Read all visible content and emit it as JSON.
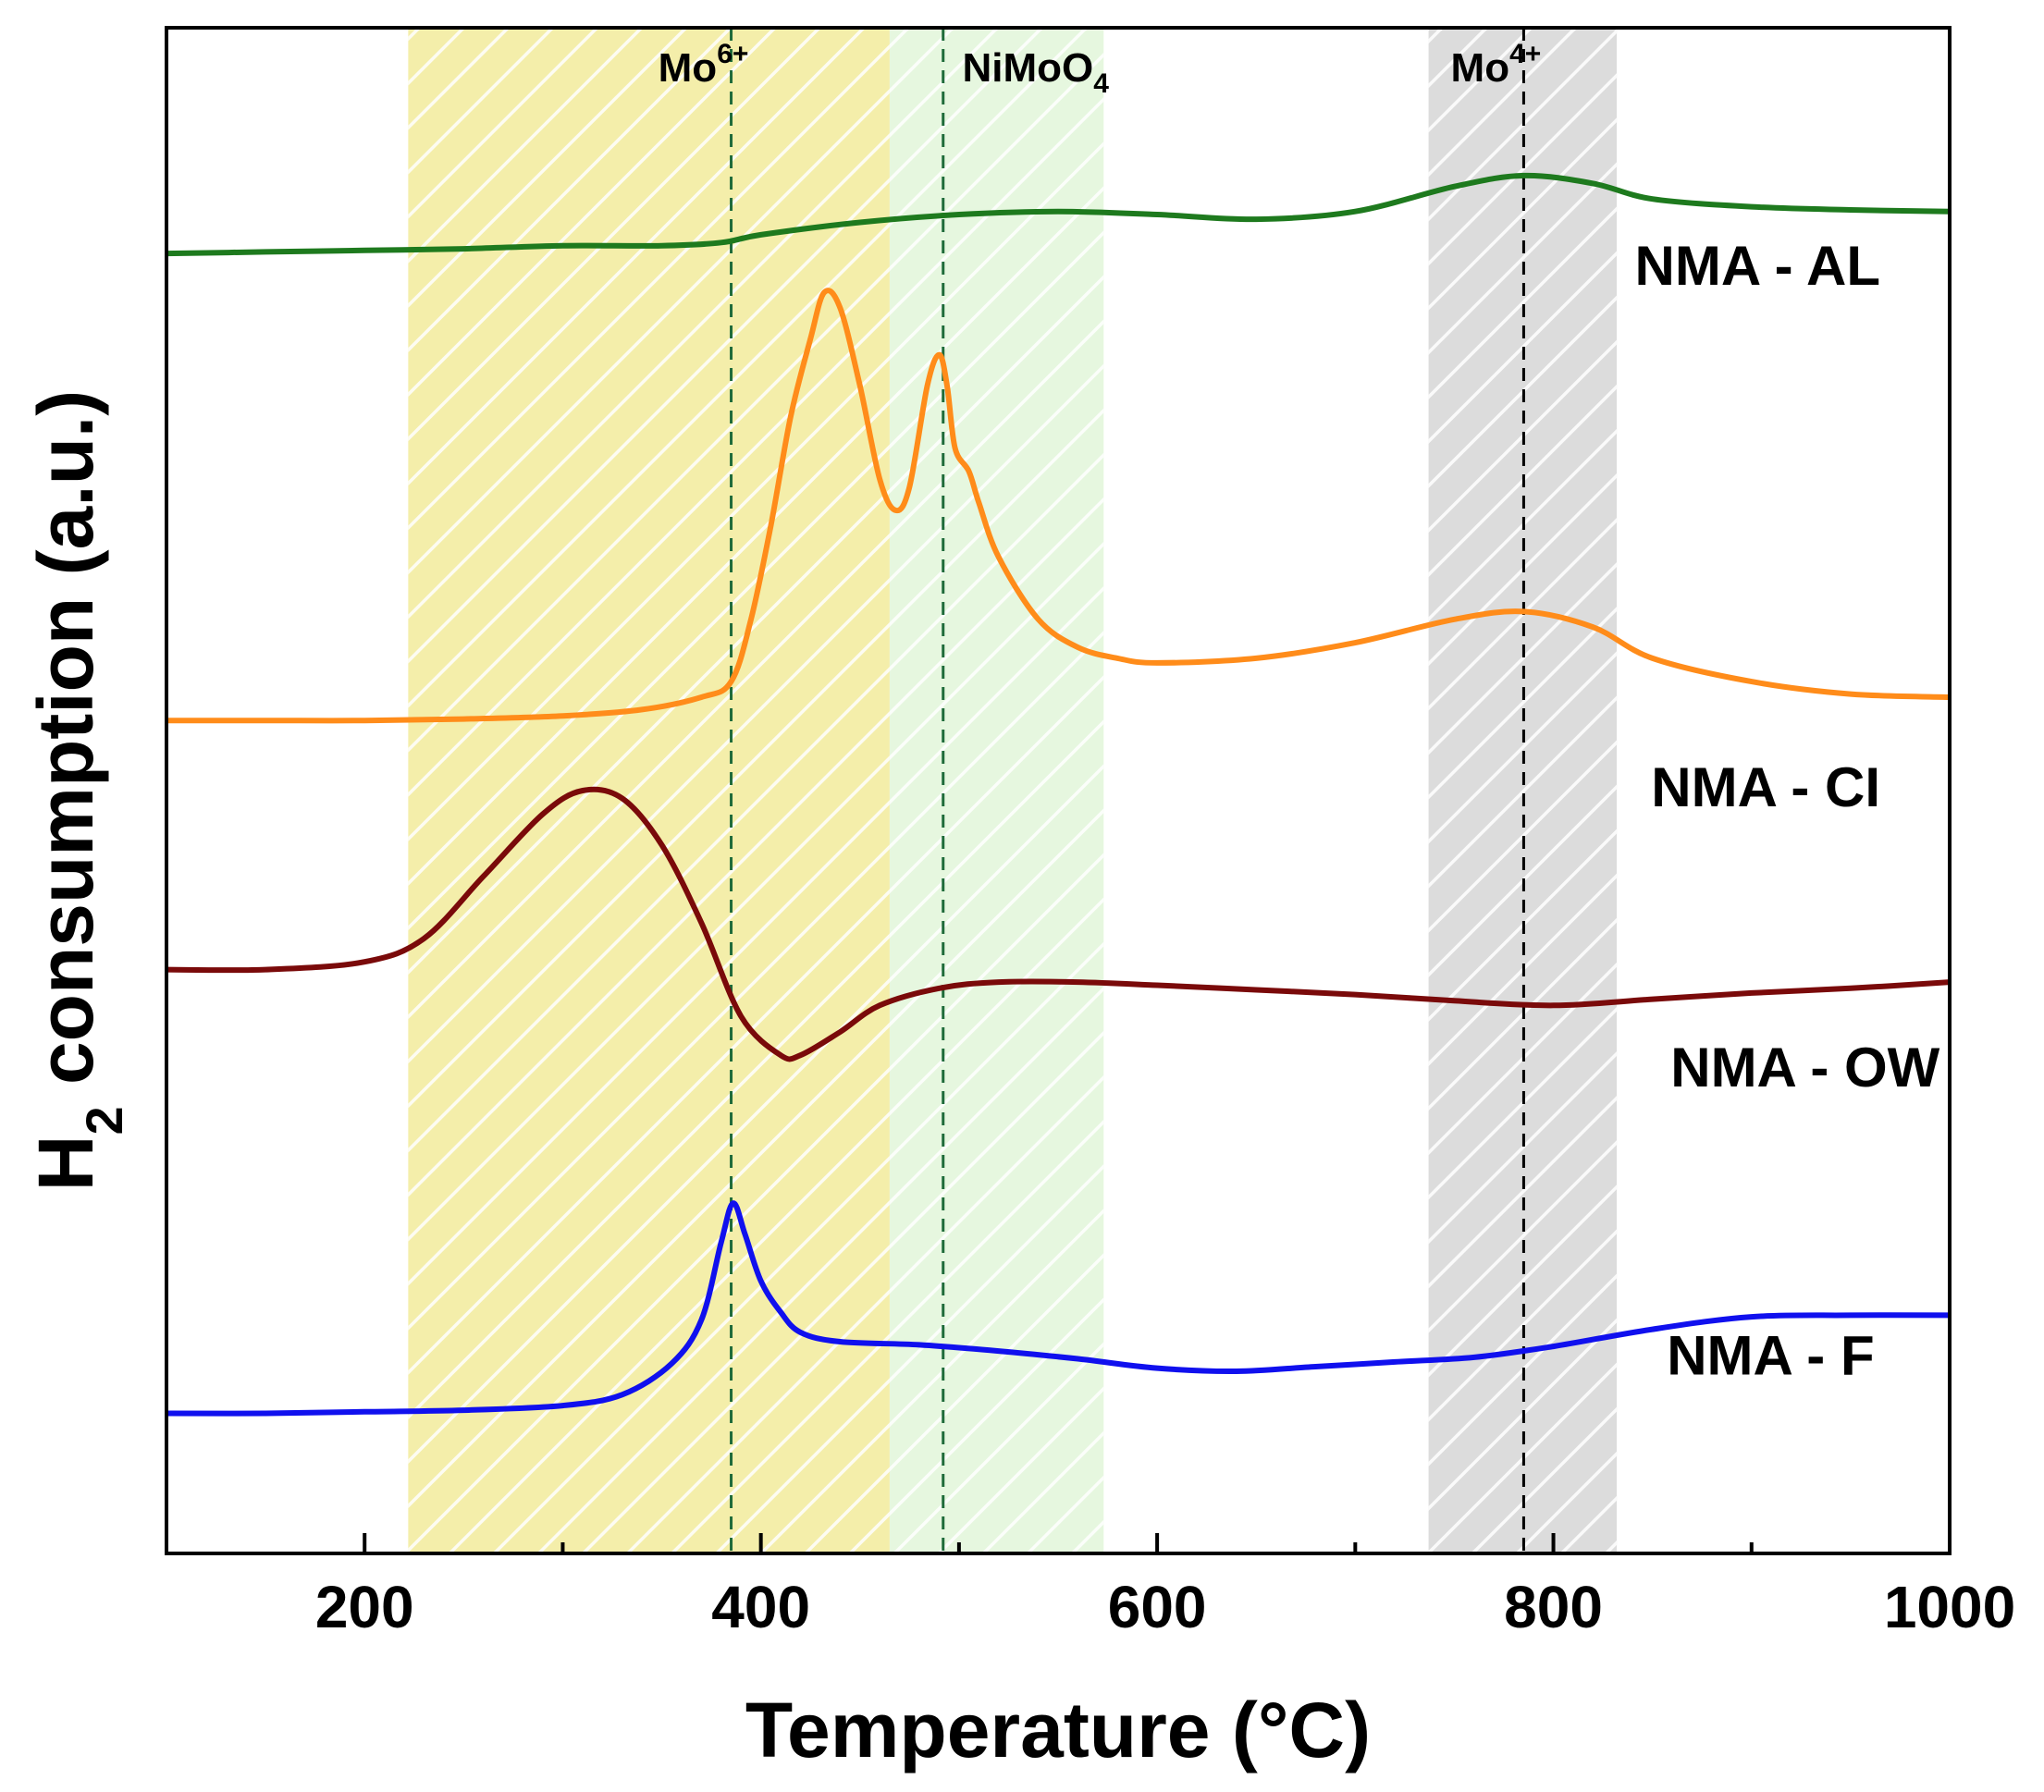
{
  "chart_data": {
    "type": "line",
    "title": "",
    "xlabel": "Temperature (°C)",
    "ylabel_main": "H",
    "ylabel_sub": "2",
    "ylabel_rest": " consumption (a.u.)",
    "xlim": [
      100,
      1000
    ],
    "xticks": [
      200,
      400,
      600,
      800,
      1000
    ],
    "minor_xticks": [
      300,
      500,
      700,
      900
    ],
    "grid": false,
    "regions": [
      {
        "name": "Mo6+",
        "label": "Mo",
        "sup": "6+",
        "x0": 222,
        "x1": 465,
        "color": "#f4eeaa",
        "ref_line": 385,
        "ref_color": "#1f6b3a"
      },
      {
        "name": "NiMoO4",
        "label": "NiMoO",
        "sub": "4",
        "x0": 465,
        "x1": 573,
        "color": "#e6f7df",
        "ref_line": 492,
        "ref_color": "#1f6b3a"
      },
      {
        "name": "Mo4+",
        "label": "Mo",
        "sup": "4+",
        "x0": 737,
        "x1": 832,
        "color": "#dcdcdc",
        "ref_line": 785,
        "ref_color": "#000000"
      }
    ],
    "series": [
      {
        "name": "NMA - AL",
        "color": "#1e7a1e",
        "points": [
          [
            100,
            9.55
          ],
          [
            150,
            9.56
          ],
          [
            200,
            9.57
          ],
          [
            250,
            9.58
          ],
          [
            300,
            9.6
          ],
          [
            350,
            9.6
          ],
          [
            380,
            9.62
          ],
          [
            400,
            9.67
          ],
          [
            450,
            9.75
          ],
          [
            500,
            9.8
          ],
          [
            550,
            9.82
          ],
          [
            600,
            9.8
          ],
          [
            650,
            9.77
          ],
          [
            700,
            9.82
          ],
          [
            750,
            9.98
          ],
          [
            785,
            10.05
          ],
          [
            820,
            10.0
          ],
          [
            850,
            9.9
          ],
          [
            900,
            9.85
          ],
          [
            950,
            9.83
          ],
          [
            1000,
            9.82
          ]
        ]
      },
      {
        "name": "NMA - CI",
        "color": "#ff8c1a",
        "points": [
          [
            100,
            6.55
          ],
          [
            150,
            6.55
          ],
          [
            200,
            6.55
          ],
          [
            250,
            6.56
          ],
          [
            300,
            6.58
          ],
          [
            340,
            6.62
          ],
          [
            370,
            6.7
          ],
          [
            385,
            6.8
          ],
          [
            395,
            7.2
          ],
          [
            405,
            7.8
          ],
          [
            415,
            8.5
          ],
          [
            425,
            9.0
          ],
          [
            432,
            9.3
          ],
          [
            440,
            9.2
          ],
          [
            450,
            8.7
          ],
          [
            460,
            8.1
          ],
          [
            468,
            7.9
          ],
          [
            475,
            8.05
          ],
          [
            484,
            8.7
          ],
          [
            490,
            8.9
          ],
          [
            494,
            8.7
          ],
          [
            498,
            8.3
          ],
          [
            505,
            8.15
          ],
          [
            510,
            7.95
          ],
          [
            520,
            7.6
          ],
          [
            540,
            7.2
          ],
          [
            560,
            7.02
          ],
          [
            580,
            6.95
          ],
          [
            600,
            6.92
          ],
          [
            650,
            6.95
          ],
          [
            700,
            7.05
          ],
          [
            750,
            7.2
          ],
          [
            785,
            7.25
          ],
          [
            820,
            7.15
          ],
          [
            850,
            6.95
          ],
          [
            900,
            6.8
          ],
          [
            950,
            6.72
          ],
          [
            1000,
            6.7
          ]
        ]
      },
      {
        "name": "NMA - OW",
        "color": "#7a0a0a",
        "points": [
          [
            100,
            4.95
          ],
          [
            150,
            4.95
          ],
          [
            200,
            5.0
          ],
          [
            230,
            5.15
          ],
          [
            260,
            5.55
          ],
          [
            290,
            5.95
          ],
          [
            310,
            6.1
          ],
          [
            330,
            6.05
          ],
          [
            350,
            5.75
          ],
          [
            370,
            5.25
          ],
          [
            390,
            4.65
          ],
          [
            410,
            4.4
          ],
          [
            420,
            4.4
          ],
          [
            440,
            4.55
          ],
          [
            460,
            4.72
          ],
          [
            490,
            4.83
          ],
          [
            520,
            4.87
          ],
          [
            560,
            4.87
          ],
          [
            600,
            4.85
          ],
          [
            650,
            4.82
          ],
          [
            700,
            4.79
          ],
          [
            750,
            4.75
          ],
          [
            800,
            4.72
          ],
          [
            850,
            4.76
          ],
          [
            900,
            4.8
          ],
          [
            950,
            4.83
          ],
          [
            1000,
            4.87
          ]
        ]
      },
      {
        "name": "NMA - F",
        "color": "#1010ee",
        "points": [
          [
            100,
            2.1
          ],
          [
            150,
            2.1
          ],
          [
            200,
            2.11
          ],
          [
            250,
            2.12
          ],
          [
            300,
            2.15
          ],
          [
            330,
            2.22
          ],
          [
            355,
            2.42
          ],
          [
            370,
            2.7
          ],
          [
            380,
            3.2
          ],
          [
            386,
            3.45
          ],
          [
            392,
            3.25
          ],
          [
            400,
            2.95
          ],
          [
            410,
            2.75
          ],
          [
            420,
            2.62
          ],
          [
            440,
            2.56
          ],
          [
            480,
            2.54
          ],
          [
            520,
            2.5
          ],
          [
            560,
            2.45
          ],
          [
            600,
            2.39
          ],
          [
            640,
            2.37
          ],
          [
            680,
            2.4
          ],
          [
            720,
            2.43
          ],
          [
            760,
            2.46
          ],
          [
            800,
            2.53
          ],
          [
            850,
            2.64
          ],
          [
            900,
            2.72
          ],
          [
            950,
            2.73
          ],
          [
            1000,
            2.73
          ]
        ]
      }
    ],
    "series_labels": [
      {
        "text": "NMA - AL",
        "anchor_x": 965,
        "anchor_y": 9.35
      },
      {
        "text": "NMA - CI",
        "anchor_x": 965,
        "anchor_y": 6.0
      },
      {
        "text": "NMA - OW",
        "anchor_x": 995,
        "anchor_y": 4.2
      },
      {
        "text": "NMA - F",
        "anchor_x": 962,
        "anchor_y": 2.35
      }
    ]
  }
}
